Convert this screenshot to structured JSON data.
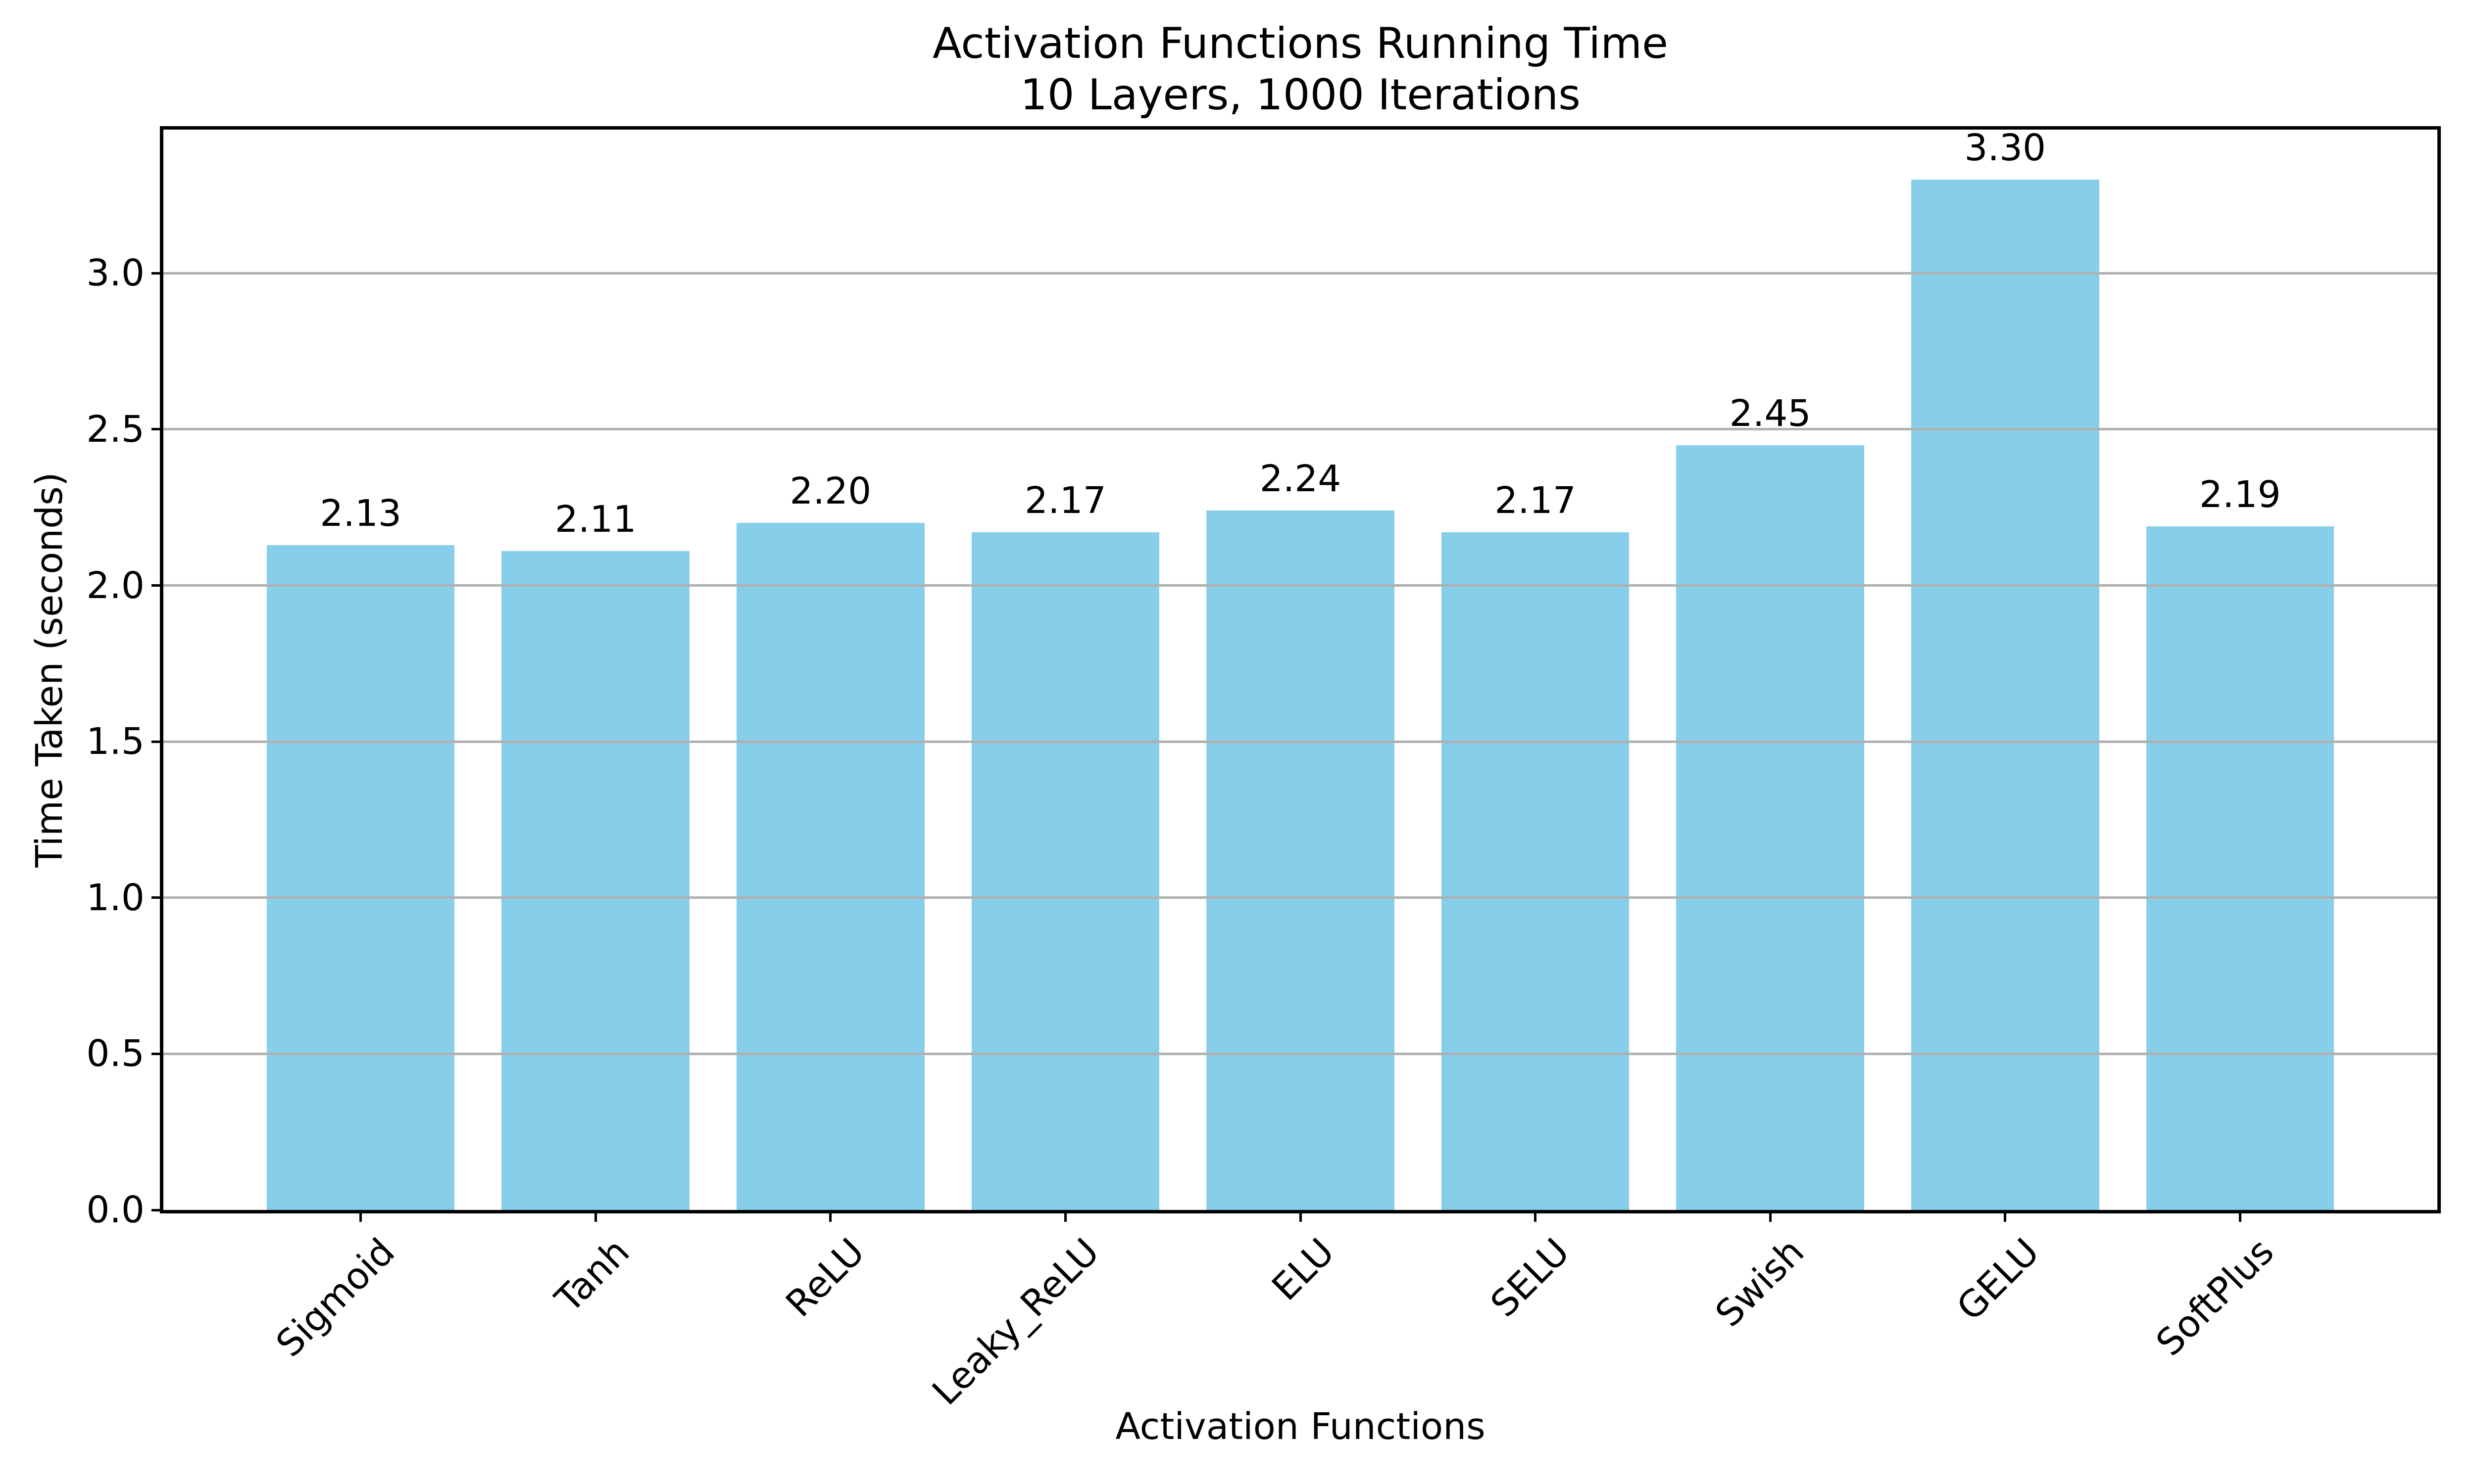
{
  "figure": {
    "title_line1": "Activation Functions Running Time",
    "title_line2": "10 Layers, 1000 Iterations",
    "xlabel": "Activation Functions",
    "ylabel": "Time Taken (seconds)"
  },
  "chart_data": {
    "type": "bar",
    "title": "Activation Functions Running Time\n10 Layers, 1000 Iterations",
    "xlabel": "Activation Functions",
    "ylabel": "Time Taken (seconds)",
    "categories": [
      "Sigmoid",
      "Tanh",
      "ReLU",
      "Leaky_ReLU",
      "ELU",
      "SELU",
      "Swish",
      "GELU",
      "SoftPlus"
    ],
    "values": [
      2.13,
      2.11,
      2.2,
      2.17,
      2.24,
      2.17,
      2.45,
      3.3,
      2.19
    ],
    "bar_labels": [
      "2.13",
      "2.11",
      "2.20",
      "2.17",
      "2.24",
      "2.17",
      "2.45",
      "3.30",
      "2.19"
    ],
    "y_ticks": [
      0.0,
      0.5,
      1.0,
      1.5,
      2.0,
      2.5,
      3.0
    ],
    "y_tick_labels": [
      "0.0",
      "0.5",
      "1.0",
      "1.5",
      "2.0",
      "2.5",
      "3.0"
    ],
    "ylim": [
      0,
      3.46
    ],
    "x_tick_rotation_deg": 45,
    "bar_color": "#87CEEB",
    "grid_color": "#b0b0b0",
    "grid": "horizontal gridlines at y ticks, drawn over bars",
    "legend_position": "none"
  }
}
